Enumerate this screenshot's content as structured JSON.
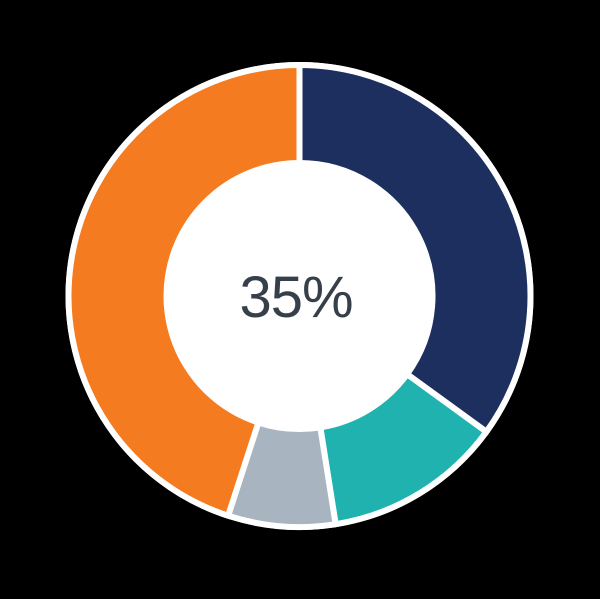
{
  "page": {
    "background_color": "#000000"
  },
  "chart_data": {
    "type": "pie",
    "subtype": "donut",
    "title": "",
    "center_label": "35%",
    "center_label_color": "#37404a",
    "start_angle_deg": 0,
    "direction": "clockwise",
    "donut_hole_ratio": 0.59,
    "gap_color": "#ffffff",
    "rim_color": "#ffffff",
    "legend": "none",
    "slices": [
      {
        "label": "navy-segment",
        "value": 35,
        "color": "#1d2f5e"
      },
      {
        "label": "teal-segment",
        "value": 12.5,
        "color": "#20b2af"
      },
      {
        "label": "gray-segment",
        "value": 7.5,
        "color": "#a8b4c0"
      },
      {
        "label": "orange-segment",
        "value": 45,
        "color": "#f47b20"
      }
    ]
  }
}
